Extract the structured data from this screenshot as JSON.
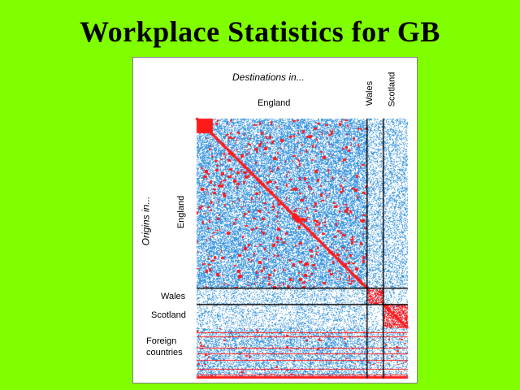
{
  "slide": {
    "title": "Workplace Statistics for GB"
  },
  "chart_data": {
    "type": "heatmap",
    "title": "",
    "x_header": "Destinations in...",
    "y_header": "Origins in...",
    "x_categories": [
      "England",
      "Wales",
      "Scotland"
    ],
    "y_categories": [
      "England",
      "Wales",
      "Scotland",
      "Foreign countries"
    ],
    "legend": "none",
    "colors": {
      "background": "#80ff00",
      "flow_low": "#3a96e0",
      "flow_high": "#ff1a1a",
      "divider": "#000000"
    }
  }
}
